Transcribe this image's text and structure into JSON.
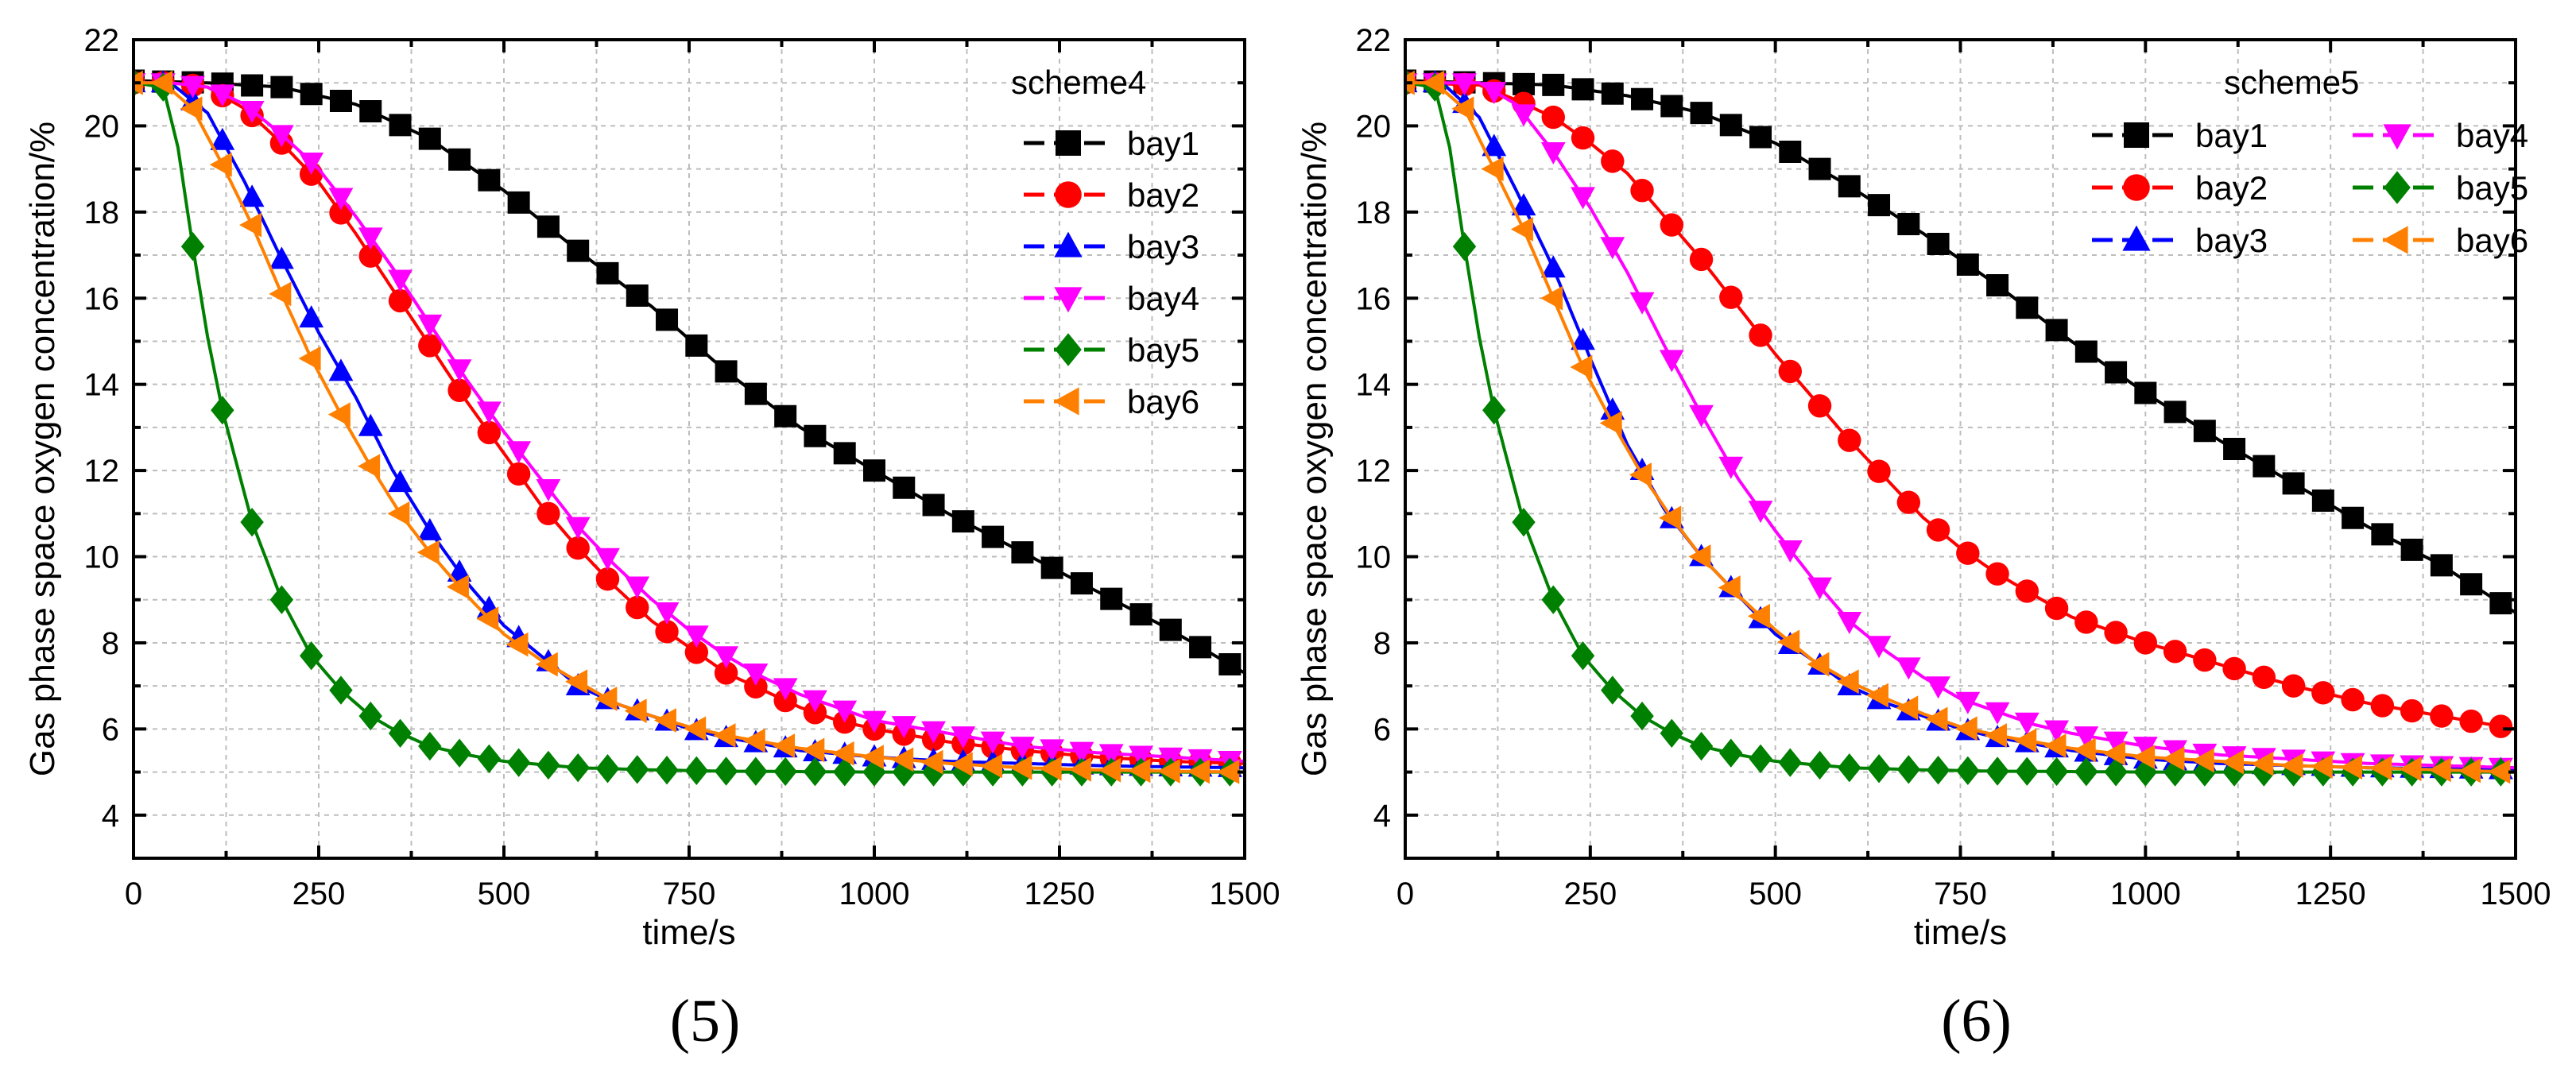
{
  "colors": {
    "bay1": "#000000",
    "bay2": "#ff0000",
    "bay3": "#0000ff",
    "bay4": "#ff00ff",
    "bay5": "#008000",
    "bay6": "#ff8000"
  },
  "chart_data": [
    {
      "type": "line",
      "caption": "(5)",
      "legend_title": "scheme4",
      "legend_position": "top-right",
      "legend_columns": 1,
      "xlabel": "time/s",
      "ylabel": "Gas phase space oxygen concentration/%",
      "xlim": [
        0,
        1500
      ],
      "ylim": [
        3,
        22
      ],
      "xticks": [
        0,
        250,
        500,
        750,
        1000,
        1250,
        1500
      ],
      "yticks": [
        4,
        6,
        8,
        10,
        12,
        14,
        16,
        18,
        20,
        22
      ],
      "xtick_labels": [
        "0",
        "250",
        "500",
        "750",
        "1000",
        "1250",
        "1500"
      ],
      "ytick_labels": [
        "4",
        "6",
        "8",
        "10",
        "12",
        "14",
        "16",
        "18",
        "20",
        "22"
      ],
      "grid": true,
      "marker_spacing": 40,
      "series": [
        {
          "name": "bay1",
          "marker": "square",
          "x": [
            0,
            100,
            200,
            300,
            400,
            500,
            600,
            700,
            800,
            900,
            1000,
            1100,
            1200,
            1300,
            1400,
            1500
          ],
          "values": [
            21.05,
            21.0,
            20.9,
            20.5,
            19.7,
            18.5,
            17.1,
            15.8,
            14.3,
            13.0,
            12.0,
            11.0,
            10.1,
            9.2,
            8.3,
            7.3
          ]
        },
        {
          "name": "bay2",
          "marker": "circle",
          "x": [
            0,
            50,
            100,
            150,
            200,
            250,
            300,
            350,
            400,
            450,
            500,
            550,
            600,
            650,
            700,
            750,
            800,
            850,
            900,
            950,
            1000,
            1100,
            1200,
            1300,
            1400,
            1500
          ],
          "values": [
            21.0,
            21.0,
            20.9,
            20.4,
            19.6,
            18.7,
            17.5,
            16.2,
            14.9,
            13.6,
            12.4,
            11.2,
            10.2,
            9.3,
            8.5,
            7.9,
            7.3,
            6.9,
            6.5,
            6.2,
            6.0,
            5.7,
            5.5,
            5.35,
            5.25,
            5.2
          ]
        },
        {
          "name": "bay3",
          "marker": "triangle-up",
          "x": [
            0,
            50,
            100,
            150,
            200,
            250,
            300,
            350,
            400,
            450,
            500,
            550,
            600,
            650,
            700,
            750,
            800,
            900,
            1000,
            1100,
            1200,
            1300,
            1400,
            1500
          ],
          "values": [
            21.0,
            21.0,
            20.3,
            18.7,
            16.9,
            15.2,
            13.7,
            12.0,
            10.6,
            9.4,
            8.4,
            7.7,
            7.0,
            6.6,
            6.3,
            6.0,
            5.8,
            5.5,
            5.35,
            5.25,
            5.2,
            5.15,
            5.12,
            5.1
          ]
        },
        {
          "name": "bay4",
          "marker": "triangle-down",
          "x": [
            0,
            50,
            100,
            150,
            200,
            250,
            300,
            350,
            400,
            450,
            500,
            550,
            600,
            650,
            700,
            750,
            800,
            850,
            900,
            950,
            1000,
            1100,
            1200,
            1300,
            1400,
            1500
          ],
          "values": [
            21.0,
            21.0,
            20.9,
            20.5,
            19.8,
            19.0,
            17.9,
            16.7,
            15.4,
            14.1,
            12.9,
            11.8,
            10.7,
            9.8,
            9.0,
            8.3,
            7.7,
            7.2,
            6.8,
            6.5,
            6.2,
            5.9,
            5.6,
            5.45,
            5.35,
            5.25
          ]
        },
        {
          "name": "bay5",
          "marker": "diamond",
          "x": [
            0,
            40,
            60,
            80,
            100,
            120,
            160,
            200,
            240,
            280,
            320,
            360,
            400,
            450,
            500,
            600,
            700,
            800,
            1000,
            1200,
            1500
          ],
          "values": [
            21.0,
            20.9,
            19.5,
            17.2,
            15.1,
            13.4,
            10.8,
            9.0,
            7.7,
            6.9,
            6.3,
            5.9,
            5.6,
            5.4,
            5.25,
            5.1,
            5.05,
            5.02,
            5.0,
            5.0,
            5.0
          ]
        },
        {
          "name": "bay6",
          "marker": "triangle-left",
          "x": [
            0,
            40,
            80,
            120,
            160,
            200,
            240,
            280,
            320,
            360,
            400,
            450,
            500,
            550,
            600,
            650,
            700,
            750,
            800,
            900,
            1000,
            1100,
            1200,
            1300,
            1400,
            1500
          ],
          "values": [
            21.0,
            21.0,
            20.4,
            19.1,
            17.7,
            16.1,
            14.6,
            13.3,
            12.1,
            11.0,
            10.1,
            9.1,
            8.2,
            7.6,
            7.1,
            6.6,
            6.3,
            6.05,
            5.85,
            5.55,
            5.35,
            5.2,
            5.1,
            5.05,
            5.02,
            5.0
          ]
        }
      ]
    },
    {
      "type": "line",
      "caption": "(6)",
      "legend_title": "scheme5",
      "legend_position": "top-right",
      "legend_columns": 2,
      "xlabel": "time/s",
      "ylabel": "Gas phase space oxygen concentration/%",
      "xlim": [
        0,
        1500
      ],
      "ylim": [
        3,
        22
      ],
      "xticks": [
        0,
        250,
        500,
        750,
        1000,
        1250,
        1500
      ],
      "yticks": [
        4,
        6,
        8,
        10,
        12,
        14,
        16,
        18,
        20,
        22
      ],
      "xtick_labels": [
        "0",
        "250",
        "500",
        "750",
        "1000",
        "1250",
        "1500"
      ],
      "ytick_labels": [
        "4",
        "6",
        "8",
        "10",
        "12",
        "14",
        "16",
        "18",
        "20",
        "22"
      ],
      "grid": true,
      "marker_spacing": 40,
      "series": [
        {
          "name": "bay1",
          "marker": "square",
          "x": [
            0,
            100,
            200,
            300,
            400,
            500,
            600,
            700,
            800,
            900,
            1000,
            1100,
            1200,
            1300,
            1400,
            1500
          ],
          "values": [
            21.05,
            21.0,
            20.95,
            20.7,
            20.3,
            19.6,
            18.6,
            17.5,
            16.3,
            15.0,
            13.8,
            12.7,
            11.7,
            10.7,
            9.8,
            8.7
          ]
        },
        {
          "name": "bay2",
          "marker": "circle",
          "x": [
            0,
            100,
            150,
            200,
            250,
            300,
            350,
            400,
            450,
            500,
            550,
            600,
            650,
            700,
            750,
            800,
            850,
            900,
            950,
            1000,
            1100,
            1200,
            1300,
            1400,
            1500
          ],
          "values": [
            21.0,
            20.95,
            20.6,
            20.2,
            19.6,
            18.9,
            17.9,
            16.9,
            15.8,
            14.7,
            13.7,
            12.7,
            11.8,
            10.9,
            10.2,
            9.6,
            9.1,
            8.6,
            8.3,
            8.0,
            7.5,
            7.0,
            6.6,
            6.3,
            6.0
          ]
        },
        {
          "name": "bay3",
          "marker": "triangle-up",
          "x": [
            0,
            50,
            100,
            150,
            200,
            250,
            300,
            350,
            400,
            450,
            500,
            550,
            600,
            650,
            700,
            750,
            800,
            900,
            1000,
            1100,
            1200,
            1300,
            1400,
            1500
          ],
          "values": [
            21.0,
            21.0,
            20.2,
            18.5,
            16.7,
            14.6,
            12.6,
            11.1,
            10.0,
            9.1,
            8.2,
            7.6,
            7.0,
            6.6,
            6.3,
            6.0,
            5.8,
            5.5,
            5.3,
            5.2,
            5.15,
            5.1,
            5.08,
            5.05
          ]
        },
        {
          "name": "bay4",
          "marker": "triangle-down",
          "x": [
            0,
            100,
            150,
            200,
            250,
            300,
            350,
            400,
            450,
            500,
            550,
            600,
            650,
            700,
            750,
            800,
            850,
            900,
            950,
            1000,
            1100,
            1200,
            1300,
            1400,
            1500
          ],
          "values": [
            21.0,
            21.0,
            20.5,
            19.4,
            18.1,
            16.6,
            14.9,
            13.3,
            11.8,
            10.6,
            9.5,
            8.5,
            7.8,
            7.2,
            6.7,
            6.4,
            6.1,
            5.9,
            5.75,
            5.6,
            5.4,
            5.3,
            5.2,
            5.15,
            5.1
          ]
        },
        {
          "name": "bay5",
          "marker": "diamond",
          "x": [
            0,
            40,
            60,
            80,
            100,
            120,
            160,
            200,
            240,
            280,
            320,
            360,
            400,
            450,
            500,
            600,
            700,
            800,
            1000,
            1200,
            1500
          ],
          "values": [
            21.0,
            20.9,
            19.5,
            17.2,
            15.1,
            13.4,
            10.8,
            9.0,
            7.7,
            6.9,
            6.3,
            5.9,
            5.6,
            5.4,
            5.25,
            5.1,
            5.05,
            5.02,
            5.0,
            5.0,
            5.0
          ]
        },
        {
          "name": "bay6",
          "marker": "triangle-left",
          "x": [
            0,
            40,
            80,
            120,
            160,
            200,
            240,
            280,
            320,
            360,
            400,
            450,
            500,
            550,
            600,
            650,
            700,
            750,
            800,
            900,
            1000,
            1100,
            1200,
            1300,
            1400,
            1500
          ],
          "values": [
            21.0,
            21.0,
            20.4,
            19.0,
            17.6,
            16.0,
            14.4,
            13.1,
            11.9,
            10.9,
            10.0,
            9.1,
            8.3,
            7.6,
            7.1,
            6.7,
            6.35,
            6.05,
            5.85,
            5.55,
            5.35,
            5.25,
            5.15,
            5.1,
            5.05,
            5.0
          ]
        }
      ]
    }
  ]
}
